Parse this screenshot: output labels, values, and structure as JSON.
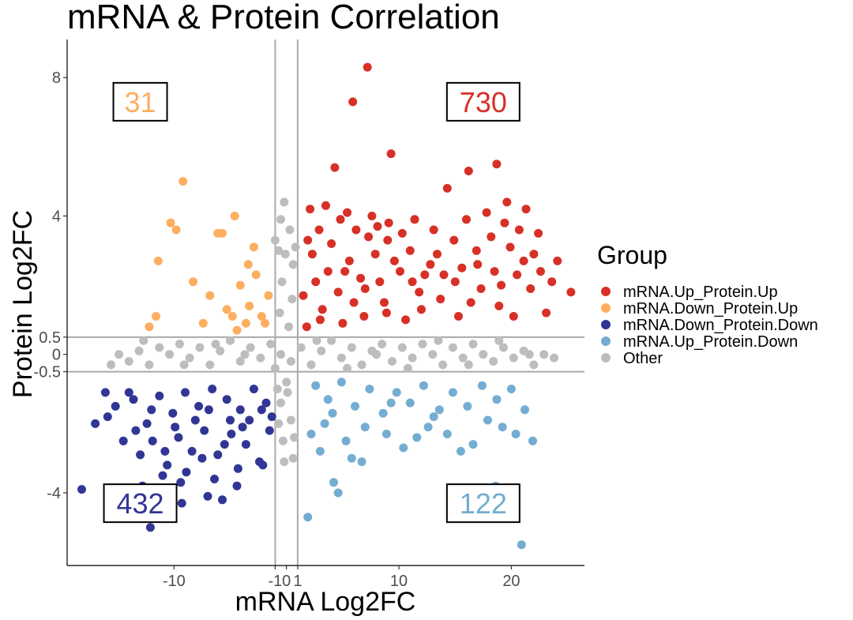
{
  "chart_data": {
    "type": "scatter",
    "title": "mRNA & Protein Correlation",
    "xlabel": "mRNA Log2FC",
    "ylabel": "Protein Log2FC",
    "xlim": [
      -19.5,
      26.5
    ],
    "ylim": [
      -6.1,
      9.1
    ],
    "x_ticks": [
      {
        "value": -10,
        "label": "-10"
      },
      {
        "value": -1,
        "label": "-1"
      },
      {
        "value": 0,
        "label": "0"
      },
      {
        "value": 1,
        "label": "1"
      },
      {
        "value": 10,
        "label": "10"
      },
      {
        "value": 20,
        "label": "20"
      }
    ],
    "y_ticks": [
      {
        "value": -4,
        "label": "-4"
      },
      {
        "value": -0.5,
        "label": "-0.5"
      },
      {
        "value": 0,
        "label": "0"
      },
      {
        "value": 0.5,
        "label": "0.5"
      },
      {
        "value": 4,
        "label": "4"
      },
      {
        "value": 8,
        "label": "8"
      }
    ],
    "threshold_lines": {
      "x": [
        -1,
        1
      ],
      "y": [
        -0.5,
        0.5
      ]
    },
    "legend": {
      "title": "Group",
      "position": "right",
      "entries": [
        {
          "name": "mRNA.Up_Protein.Up",
          "color": "#d73027"
        },
        {
          "name": "mRNA.Down_Protein.Up",
          "color": "#fdae61"
        },
        {
          "name": "mRNA.Down_Protein.Down",
          "color": "#313695"
        },
        {
          "name": "mRNA.Up_Protein.Down",
          "color": "#74add1"
        },
        {
          "name": "Other",
          "color": "#bdbdbd"
        }
      ]
    },
    "counts": [
      {
        "group": "mRNA.Down_Protein.Up",
        "label": "31",
        "x": -13,
        "y": 7.3,
        "color": "#fdae61"
      },
      {
        "group": "mRNA.Up_Protein.Up",
        "label": "730",
        "x": 17.5,
        "y": 7.3,
        "color": "#d73027"
      },
      {
        "group": "mRNA.Down_Protein.Down",
        "label": "432",
        "x": -13,
        "y": -4.3,
        "color": "#313695"
      },
      {
        "group": "mRNA.Up_Protein.Down",
        "label": "122",
        "x": 17.5,
        "y": -4.3,
        "color": "#74add1"
      }
    ],
    "series": [
      {
        "name": "mRNA.Up_Protein.Up",
        "color": "#d73027",
        "points": [
          [
            7.2,
            8.3
          ],
          [
            5.9,
            7.3
          ],
          [
            9.3,
            5.8
          ],
          [
            18.7,
            5.5
          ],
          [
            16.2,
            5.3
          ],
          [
            4.3,
            5.4
          ],
          [
            14.3,
            4.8
          ],
          [
            2.1,
            4.2
          ],
          [
            3.5,
            4.3
          ],
          [
            5.4,
            4.1
          ],
          [
            7.6,
            4.0
          ],
          [
            9.1,
            3.8
          ],
          [
            11.4,
            3.9
          ],
          [
            13.1,
            3.6
          ],
          [
            16.0,
            3.9
          ],
          [
            17.8,
            4.1
          ],
          [
            19.6,
            4.4
          ],
          [
            21.3,
            4.2
          ],
          [
            22.4,
            3.5
          ],
          [
            24.1,
            2.7
          ],
          [
            25.3,
            1.8
          ],
          [
            23.1,
            1.2
          ],
          [
            21.7,
            1.9
          ],
          [
            20.2,
            1.1
          ],
          [
            18.5,
            2.4
          ],
          [
            16.4,
            1.5
          ],
          [
            15.0,
            2.1
          ],
          [
            13.7,
            1.6
          ],
          [
            12.3,
            2.3
          ],
          [
            10.6,
            1.0
          ],
          [
            8.7,
            1.5
          ],
          [
            6.9,
            1.1
          ],
          [
            5.0,
            0.9
          ],
          [
            3.2,
            1.3
          ],
          [
            1.8,
            0.8
          ],
          [
            2.6,
            2.1
          ],
          [
            4.0,
            3.2
          ],
          [
            6.2,
            3.6
          ],
          [
            7.9,
            2.9
          ],
          [
            9.6,
            2.7
          ],
          [
            11.0,
            3.0
          ],
          [
            12.8,
            2.6
          ],
          [
            14.9,
            3.3
          ],
          [
            16.9,
            3.0
          ],
          [
            18.2,
            3.4
          ],
          [
            19.9,
            3.1
          ],
          [
            21.1,
            2.7
          ],
          [
            22.6,
            2.4
          ],
          [
            23.6,
            2.1
          ],
          [
            2.3,
            2.9
          ],
          [
            3.7,
            2.4
          ],
          [
            4.6,
            1.8
          ],
          [
            5.6,
            2.7
          ],
          [
            6.6,
            2.2
          ],
          [
            7.3,
            3.4
          ],
          [
            8.3,
            2.1
          ],
          [
            9.0,
            3.3
          ],
          [
            10.1,
            2.4
          ],
          [
            11.8,
            1.8
          ],
          [
            13.4,
            2.9
          ],
          [
            15.6,
            2.5
          ],
          [
            17.3,
            1.9
          ],
          [
            19.1,
            2.0
          ],
          [
            20.7,
            3.6
          ],
          [
            1.5,
            1.7
          ],
          [
            2.9,
            3.6
          ],
          [
            4.8,
            3.9
          ],
          [
            6.0,
            1.5
          ],
          [
            8.1,
            3.7
          ],
          [
            10.3,
            3.5
          ],
          [
            12.0,
            1.3
          ],
          [
            14.0,
            2.3
          ],
          [
            17.0,
            2.6
          ],
          [
            18.9,
            1.4
          ],
          [
            20.5,
            2.3
          ],
          [
            22.0,
            2.9
          ],
          [
            1.9,
            3.3
          ],
          [
            3.0,
            1.0
          ],
          [
            5.2,
            2.4
          ],
          [
            7.0,
            1.9
          ],
          [
            8.9,
            1.2
          ],
          [
            11.2,
            2.1
          ],
          [
            15.3,
            1.1
          ],
          [
            19.4,
            3.8
          ]
        ]
      },
      {
        "name": "mRNA.Down_Protein.Up",
        "color": "#fdae61",
        "points": [
          [
            -9.2,
            5.0
          ],
          [
            -10.3,
            3.8
          ],
          [
            -9.8,
            3.6
          ],
          [
            -6.1,
            3.5
          ],
          [
            -5.7,
            3.5
          ],
          [
            -4.6,
            4.0
          ],
          [
            -11.4,
            2.7
          ],
          [
            -8.3,
            2.1
          ],
          [
            -12.2,
            0.8
          ],
          [
            -11.6,
            1.1
          ],
          [
            -6.8,
            1.7
          ],
          [
            -5.3,
            1.3
          ],
          [
            -4.1,
            2.0
          ],
          [
            -3.3,
            1.4
          ],
          [
            -2.7,
            2.3
          ],
          [
            -2.2,
            1.1
          ],
          [
            -3.6,
            0.9
          ],
          [
            -4.4,
            0.7
          ],
          [
            -7.4,
            0.9
          ],
          [
            -1.6,
            1.7
          ],
          [
            -2.9,
            3.1
          ],
          [
            -3.4,
            2.6
          ],
          [
            -4.8,
            1.1
          ],
          [
            -1.9,
            0.9
          ]
        ]
      },
      {
        "name": "mRNA.Down_Protein.Down",
        "color": "#313695",
        "points": [
          [
            -12.1,
            -5.0
          ],
          [
            -18.2,
            -3.9
          ],
          [
            -9.3,
            -4.3
          ],
          [
            -7.0,
            -4.1
          ],
          [
            -5.7,
            -4.2
          ],
          [
            -4.4,
            -3.8
          ],
          [
            -16.1,
            -1.1
          ],
          [
            -15.2,
            -1.5
          ],
          [
            -13.6,
            -1.3
          ],
          [
            -12.4,
            -2.0
          ],
          [
            -11.3,
            -1.2
          ],
          [
            -10.1,
            -1.7
          ],
          [
            -9.0,
            -1.1
          ],
          [
            -7.8,
            -1.5
          ],
          [
            -6.6,
            -1.0
          ],
          [
            -5.3,
            -1.3
          ],
          [
            -4.1,
            -1.6
          ],
          [
            -2.9,
            -1.0
          ],
          [
            -1.8,
            -1.4
          ],
          [
            -17.0,
            -2.0
          ],
          [
            -14.5,
            -2.5
          ],
          [
            -13.0,
            -2.9
          ],
          [
            -11.9,
            -2.5
          ],
          [
            -10.6,
            -3.2
          ],
          [
            -9.6,
            -2.4
          ],
          [
            -8.4,
            -2.8
          ],
          [
            -7.3,
            -2.2
          ],
          [
            -6.1,
            -2.9
          ],
          [
            -4.9,
            -2.3
          ],
          [
            -3.6,
            -2.6
          ],
          [
            -2.4,
            -3.1
          ],
          [
            -1.5,
            -2.2
          ],
          [
            -12.8,
            -3.8
          ],
          [
            -11.0,
            -3.5
          ],
          [
            -8.9,
            -3.4
          ],
          [
            -6.4,
            -3.6
          ],
          [
            -4.3,
            -3.3
          ],
          [
            -2.1,
            -3.2
          ],
          [
            -15.9,
            -1.8
          ],
          [
            -14.0,
            -1.1
          ],
          [
            -12.0,
            -1.6
          ],
          [
            -9.9,
            -2.1
          ],
          [
            -8.1,
            -1.9
          ],
          [
            -6.9,
            -1.6
          ],
          [
            -5.0,
            -1.9
          ],
          [
            -3.3,
            -1.9
          ],
          [
            -2.2,
            -1.6
          ],
          [
            -10.8,
            -2.8
          ],
          [
            -7.5,
            -3.0
          ],
          [
            -5.5,
            -2.6
          ],
          [
            -3.9,
            -2.1
          ],
          [
            -13.4,
            -2.2
          ],
          [
            -1.3,
            -1.8
          ],
          [
            -9.4,
            -3.7
          ]
        ]
      },
      {
        "name": "mRNA.Up_Protein.Down",
        "color": "#74add1",
        "points": [
          [
            20.9,
            -5.5
          ],
          [
            1.9,
            -4.7
          ],
          [
            4.6,
            -4.0
          ],
          [
            4.2,
            -3.7
          ],
          [
            6.7,
            -3.1
          ],
          [
            18.6,
            -3.8
          ],
          [
            2.6,
            -0.9
          ],
          [
            3.7,
            -1.3
          ],
          [
            4.9,
            -0.8
          ],
          [
            6.1,
            -1.5
          ],
          [
            7.4,
            -1.0
          ],
          [
            8.6,
            -1.7
          ],
          [
            9.8,
            -1.1
          ],
          [
            11.0,
            -1.4
          ],
          [
            12.2,
            -0.9
          ],
          [
            13.6,
            -1.6
          ],
          [
            14.8,
            -1.1
          ],
          [
            16.1,
            -1.5
          ],
          [
            17.4,
            -0.9
          ],
          [
            18.7,
            -1.3
          ],
          [
            20.0,
            -1.0
          ],
          [
            21.2,
            -1.6
          ],
          [
            2.2,
            -2.3
          ],
          [
            3.4,
            -2.0
          ],
          [
            5.3,
            -2.5
          ],
          [
            7.0,
            -2.1
          ],
          [
            8.9,
            -2.3
          ],
          [
            10.4,
            -2.7
          ],
          [
            12.6,
            -2.1
          ],
          [
            14.3,
            -2.3
          ],
          [
            16.6,
            -2.6
          ],
          [
            19.2,
            -2.1
          ],
          [
            21.9,
            -2.5
          ],
          [
            3.0,
            -2.8
          ],
          [
            5.8,
            -3.0
          ],
          [
            11.6,
            -2.4
          ],
          [
            15.5,
            -2.8
          ],
          [
            20.4,
            -2.3
          ],
          [
            4.1,
            -1.7
          ],
          [
            13.1,
            -1.8
          ],
          [
            17.9,
            -1.9
          ],
          [
            9.3,
            -1.4
          ]
        ]
      },
      {
        "name": "Other",
        "color": "#bdbdbd",
        "points": [
          [
            -14.9,
            0.0
          ],
          [
            -14.0,
            -0.2
          ],
          [
            -13.1,
            0.1
          ],
          [
            -12.2,
            -0.3
          ],
          [
            -11.3,
            0.2
          ],
          [
            -10.4,
            0.0
          ],
          [
            -9.5,
            0.3
          ],
          [
            -8.6,
            -0.1
          ],
          [
            -7.7,
            0.2
          ],
          [
            -6.8,
            -0.3
          ],
          [
            -5.9,
            0.1
          ],
          [
            -5.0,
            0.4
          ],
          [
            -4.1,
            -0.2
          ],
          [
            -3.2,
            0.2
          ],
          [
            -2.3,
            -0.1
          ],
          [
            -1.4,
            0.3
          ],
          [
            -0.5,
            0.0
          ],
          [
            0.4,
            -0.2
          ],
          [
            1.3,
            0.2
          ],
          [
            2.2,
            -0.3
          ],
          [
            3.1,
            0.1
          ],
          [
            4.0,
            0.4
          ],
          [
            4.9,
            -0.1
          ],
          [
            5.8,
            0.2
          ],
          [
            6.7,
            -0.3
          ],
          [
            7.6,
            0.1
          ],
          [
            8.5,
            0.3
          ],
          [
            9.4,
            -0.2
          ],
          [
            10.3,
            0.2
          ],
          [
            11.2,
            -0.1
          ],
          [
            12.1,
            0.3
          ],
          [
            13.0,
            0.0
          ],
          [
            13.9,
            -0.3
          ],
          [
            14.8,
            0.2
          ],
          [
            15.7,
            -0.1
          ],
          [
            16.6,
            0.3
          ],
          [
            17.5,
            0.0
          ],
          [
            18.4,
            -0.2
          ],
          [
            19.3,
            0.2
          ],
          [
            20.2,
            -0.1
          ],
          [
            21.1,
            0.1
          ],
          [
            22.0,
            -0.3
          ],
          [
            22.9,
            0.0
          ],
          [
            23.8,
            -0.1
          ],
          [
            -15.6,
            -0.3
          ],
          [
            -12.7,
            0.4
          ],
          [
            -9.1,
            -0.3
          ],
          [
            -6.3,
            0.3
          ],
          [
            -3.7,
            0.0
          ],
          [
            -1.0,
            -0.4
          ],
          [
            2.7,
            0.4
          ],
          [
            5.4,
            -0.4
          ],
          [
            8.0,
            0.0
          ],
          [
            10.8,
            -0.4
          ],
          [
            13.5,
            0.4
          ],
          [
            16.2,
            -0.3
          ],
          [
            18.9,
            0.4
          ],
          [
            21.6,
            0.0
          ],
          [
            -0.2,
            4.4
          ],
          [
            -0.5,
            3.9
          ],
          [
            0.3,
            3.6
          ],
          [
            -0.7,
            3.0
          ],
          [
            0.6,
            2.6
          ],
          [
            -0.4,
            2.1
          ],
          [
            0.5,
            1.6
          ],
          [
            -0.6,
            1.2
          ],
          [
            0.2,
            0.8
          ],
          [
            -0.1,
            2.9
          ],
          [
            -1.0,
            3.3
          ],
          [
            0.8,
            3.1
          ],
          [
            0.0,
            -0.8
          ],
          [
            -0.5,
            -1.4
          ],
          [
            0.4,
            -1.9
          ],
          [
            -0.3,
            -2.5
          ],
          [
            0.6,
            -3.0
          ],
          [
            -0.2,
            -3.1
          ],
          [
            0.1,
            -1.1
          ],
          [
            -0.7,
            -2.0
          ],
          [
            0.7,
            -2.4
          ],
          [
            -0.8,
            -1.0
          ]
        ]
      }
    ]
  }
}
